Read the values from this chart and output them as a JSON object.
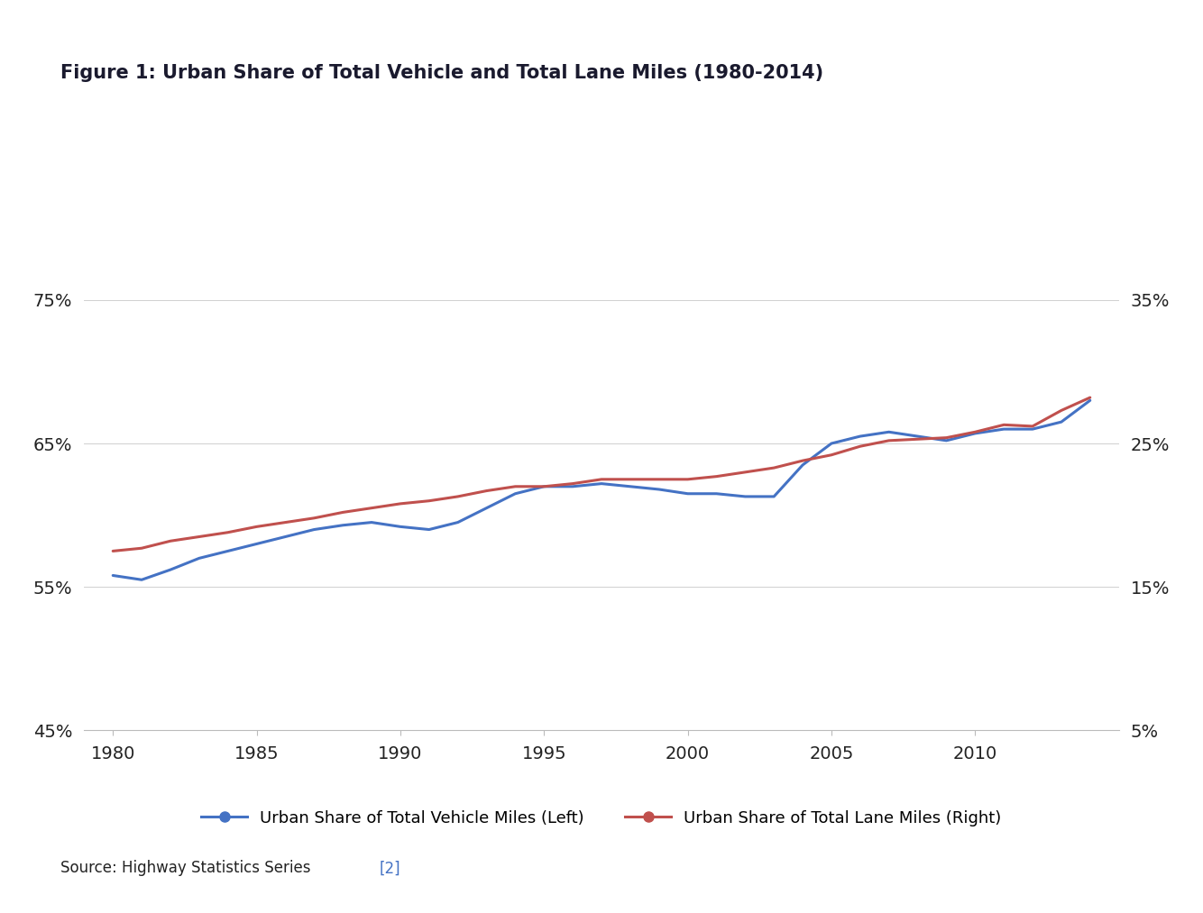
{
  "title": "Figure 1: Urban Share of Total Vehicle and Total Lane Miles (1980-2014)",
  "source_text": "Source: Highway Statistics Series",
  "source_link": "[2]",
  "left_yticks": [
    45,
    55,
    65,
    75
  ],
  "right_yticks": [
    5,
    15,
    25,
    35
  ],
  "left_ylim": [
    45,
    80
  ],
  "right_ylim": [
    5,
    40
  ],
  "xticks": [
    1980,
    1985,
    1990,
    1995,
    2000,
    2005,
    2010
  ],
  "xlim": [
    1979,
    2015
  ],
  "blue_color": "#4472C4",
  "red_color": "#C0504D",
  "line_width": 2.2,
  "legend_label_blue": "Urban Share of Total Vehicle Miles (Left)",
  "legend_label_red": "Urban Share of Total Lane Miles (Right)",
  "years": [
    1980,
    1981,
    1982,
    1983,
    1984,
    1985,
    1986,
    1987,
    1988,
    1989,
    1990,
    1991,
    1992,
    1993,
    1994,
    1995,
    1996,
    1997,
    1998,
    1999,
    2000,
    2001,
    2002,
    2003,
    2004,
    2005,
    2006,
    2007,
    2008,
    2009,
    2010,
    2011,
    2012,
    2013,
    2014
  ],
  "vehicle_miles": [
    55.8,
    55.5,
    56.2,
    57.0,
    57.5,
    58.0,
    58.5,
    59.0,
    59.3,
    59.5,
    59.2,
    59.0,
    59.5,
    60.5,
    61.5,
    62.0,
    62.0,
    62.2,
    62.0,
    61.8,
    61.5,
    61.5,
    61.3,
    61.3,
    63.5,
    65.0,
    65.5,
    65.8,
    65.5,
    65.2,
    65.7,
    66.0,
    66.0,
    66.5,
    68.0
  ],
  "lane_miles_right": [
    17.5,
    17.7,
    18.2,
    18.5,
    18.8,
    19.2,
    19.5,
    19.8,
    20.2,
    20.5,
    20.8,
    21.0,
    21.3,
    21.7,
    22.0,
    22.0,
    22.2,
    22.5,
    22.5,
    22.5,
    22.5,
    22.7,
    23.0,
    23.3,
    23.8,
    24.2,
    24.8,
    25.2,
    25.3,
    25.4,
    25.8,
    26.3,
    26.2,
    27.3,
    28.2
  ]
}
